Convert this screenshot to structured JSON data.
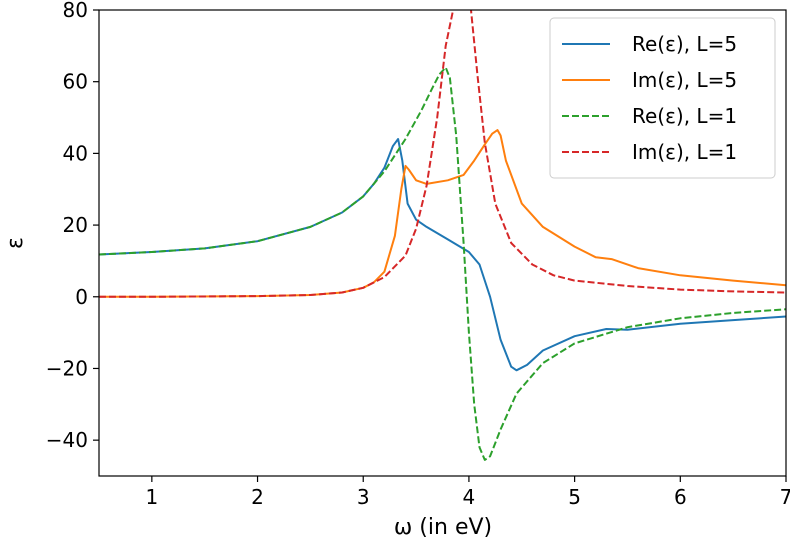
{
  "chart_data": {
    "type": "line",
    "xlabel": "ω (in eV)",
    "ylabel": "ε",
    "xlim": [
      0.5,
      7
    ],
    "ylim": [
      -50,
      80
    ],
    "xticks": [
      1,
      2,
      3,
      4,
      5,
      6,
      7
    ],
    "yticks": [
      -40,
      -20,
      0,
      20,
      40,
      60,
      80
    ],
    "xtick_labels": [
      "1",
      "2",
      "3",
      "4",
      "5",
      "6",
      "7"
    ],
    "ytick_labels": [
      "−40",
      "−20",
      "0",
      "20",
      "40",
      "60",
      "80"
    ],
    "grid": false,
    "legend_position": "top-right",
    "series": [
      {
        "name": "Re(ε), L=5",
        "color": "#1f77b4",
        "style": "solid",
        "x": [
          0.5,
          1.0,
          1.5,
          2.0,
          2.5,
          2.8,
          3.0,
          3.1,
          3.2,
          3.28,
          3.33,
          3.37,
          3.42,
          3.5,
          3.6,
          3.8,
          4.0,
          4.1,
          4.2,
          4.3,
          4.4,
          4.45,
          4.55,
          4.7,
          5.0,
          5.3,
          5.5,
          6.0,
          6.5,
          7.0
        ],
        "y": [
          11.8,
          12.5,
          13.5,
          15.5,
          19.5,
          23.5,
          28.0,
          31.5,
          36.0,
          42.0,
          44.0,
          38.0,
          26.0,
          21.5,
          19.5,
          16.0,
          12.5,
          9.0,
          0.0,
          -12.0,
          -19.5,
          -20.5,
          -19.0,
          -15.0,
          -11.0,
          -9.0,
          -9.2,
          -7.5,
          -6.5,
          -5.5
        ]
      },
      {
        "name": "Im(ε), L=5",
        "color": "#ff7f0e",
        "style": "solid",
        "x": [
          0.5,
          1.0,
          2.0,
          2.5,
          2.8,
          3.0,
          3.1,
          3.2,
          3.3,
          3.36,
          3.4,
          3.43,
          3.5,
          3.6,
          3.8,
          3.95,
          4.05,
          4.15,
          4.22,
          4.27,
          4.3,
          4.35,
          4.5,
          4.7,
          5.0,
          5.2,
          5.35,
          5.6,
          6.0,
          6.5,
          7.0
        ],
        "y": [
          0,
          0,
          0.2,
          0.5,
          1.2,
          2.5,
          4.0,
          7.0,
          17.0,
          30.0,
          36.5,
          35.5,
          32.5,
          31.5,
          32.5,
          34.0,
          38.0,
          42.5,
          45.5,
          46.5,
          45.0,
          38.0,
          26.0,
          19.5,
          14.0,
          11.0,
          10.5,
          8.0,
          6.0,
          4.5,
          3.2
        ]
      },
      {
        "name": "Re(ε), L=1",
        "color": "#2ca02c",
        "style": "dashed",
        "x": [
          0.5,
          1.0,
          1.5,
          2.0,
          2.5,
          2.8,
          3.0,
          3.2,
          3.4,
          3.55,
          3.65,
          3.72,
          3.78,
          3.82,
          3.88,
          3.95,
          4.0,
          4.05,
          4.1,
          4.15,
          4.2,
          4.3,
          4.45,
          4.7,
          5.0,
          5.5,
          6.0,
          6.5,
          7.0
        ],
        "y": [
          11.8,
          12.5,
          13.5,
          15.5,
          19.5,
          23.5,
          28.0,
          35.0,
          44.0,
          52.0,
          58.0,
          62.0,
          64.0,
          61.0,
          45.0,
          15.0,
          -10.0,
          -30.0,
          -42.0,
          -45.5,
          -44.5,
          -37.0,
          -27.0,
          -18.5,
          -13.0,
          -8.5,
          -6.0,
          -4.5,
          -3.5
        ]
      },
      {
        "name": "Im(ε), L=1",
        "color": "#d62728",
        "style": "dashed",
        "x": [
          0.5,
          1.0,
          2.0,
          2.5,
          2.8,
          3.0,
          3.2,
          3.4,
          3.5,
          3.6,
          3.7,
          3.78,
          3.85,
          3.9,
          3.93,
          4.02,
          4.08,
          4.15,
          4.25,
          4.4,
          4.6,
          4.8,
          5.0,
          5.5,
          6.0,
          6.5,
          7.0
        ],
        "y": [
          0,
          0,
          0.2,
          0.5,
          1.2,
          2.5,
          5.5,
          11.5,
          19.0,
          31.0,
          50.0,
          70.0,
          80.0,
          82.0,
          82.0,
          80.0,
          62.0,
          43.0,
          26.0,
          15.0,
          9.0,
          6.0,
          4.5,
          3.0,
          2.0,
          1.5,
          1.2
        ]
      }
    ]
  }
}
